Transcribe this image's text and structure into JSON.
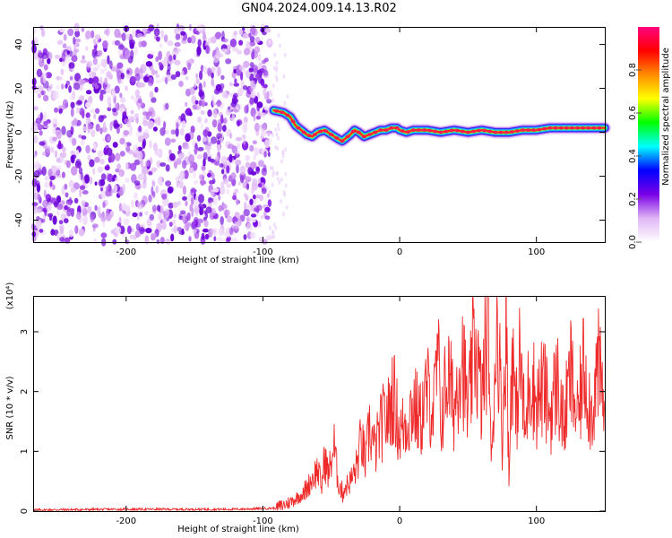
{
  "title": "GN04.2024.009.14.13.R02",
  "chart_data": [
    {
      "type": "heatmap",
      "xlabel": "Height of straight line (km)",
      "ylabel": "Frequency (Hz)",
      "xlim": [
        -268,
        150
      ],
      "ylim": [
        -50,
        48
      ],
      "x_ticks": [
        -200,
        -100,
        0,
        100
      ],
      "y_ticks": [
        -40,
        -20,
        0,
        20,
        40
      ],
      "colorbar": {
        "label": "Normalized spectral amplitude",
        "range": [
          0,
          1
        ],
        "ticks": [
          "0.0",
          "0.2",
          "0.4",
          "0.6",
          "0.8"
        ],
        "colormap": [
          "#ffffff",
          "#e0b6f5",
          "#7a00e6",
          "#0000ff",
          "#00ffff",
          "#00ff00",
          "#ffff00",
          "#ff8c00",
          "#ff0000",
          "#ff0080"
        ]
      },
      "noise_region_x": [
        -268,
        -95
      ],
      "ridge": {
        "x": [
          -92,
          -85,
          -80,
          -76,
          -72,
          -68,
          -64,
          -60,
          -55,
          -50,
          -45,
          -42,
          -40,
          -36,
          -33,
          -30,
          -26,
          -22,
          -18,
          -14,
          -10,
          -6,
          -2,
          0,
          5,
          10,
          20,
          30,
          40,
          50,
          60,
          70,
          80,
          90,
          100,
          110,
          120,
          130,
          140,
          150
        ],
        "y": [
          10,
          9,
          7,
          3,
          1,
          -1,
          -2,
          0,
          1,
          -1,
          -3,
          -4,
          -3,
          -1,
          1,
          0,
          -2,
          -1,
          0,
          1,
          1,
          2,
          2,
          1,
          0,
          1,
          1,
          0,
          1,
          0,
          1,
          0,
          0,
          1,
          1,
          2,
          2,
          2,
          2,
          2
        ]
      }
    },
    {
      "type": "line",
      "xlabel": "Height of straight line (km)",
      "ylabel": "SNR (10 * v/v)",
      "y_multiplier": "(x10⁴)",
      "xlim": [
        -268,
        150
      ],
      "ylim": [
        0,
        3.6
      ],
      "x_ticks": [
        -200,
        -100,
        0,
        100
      ],
      "y_ticks": [
        0,
        1,
        2,
        3
      ],
      "series": [
        {
          "color": "#ee2a2a",
          "x": [
            -268,
            -200,
            -120,
            -90,
            -80,
            -70,
            -65,
            -60,
            -57,
            -55,
            -52,
            -48,
            -45,
            -42,
            -40,
            -36,
            -32,
            -28,
            -25,
            -22,
            -18,
            -15,
            -12,
            -8,
            -5,
            0,
            5,
            10,
            15,
            20,
            25,
            28,
            30,
            35,
            40,
            45,
            50,
            55,
            60,
            65,
            67,
            70,
            72,
            75,
            78,
            80,
            82,
            85,
            88,
            92,
            95,
            100,
            105,
            110,
            115,
            120,
            125,
            130,
            135,
            140,
            145,
            150
          ],
          "y": [
            0.02,
            0.03,
            0.03,
            0.05,
            0.15,
            0.3,
            0.5,
            0.7,
            0.4,
            0.9,
            0.6,
            1.1,
            0.5,
            0.3,
            0.4,
            0.5,
            0.7,
            1.2,
            0.8,
            1.4,
            1.0,
            1.3,
            1.5,
            1.6,
            2.0,
            1.3,
            1.5,
            1.8,
            1.5,
            2.0,
            1.7,
            2.6,
            1.5,
            2.3,
            1.7,
            2.8,
            1.6,
            2.9,
            1.8,
            3.4,
            0.6,
            2.8,
            3.1,
            1.2,
            3.5,
            0.3,
            2.9,
            1.5,
            2.6,
            1.2,
            2.4,
            1.8,
            2.1,
            1.6,
            2.2,
            1.4,
            2.3,
            1.5,
            2.5,
            1.6,
            2.4,
            1.7
          ]
        }
      ]
    }
  ]
}
